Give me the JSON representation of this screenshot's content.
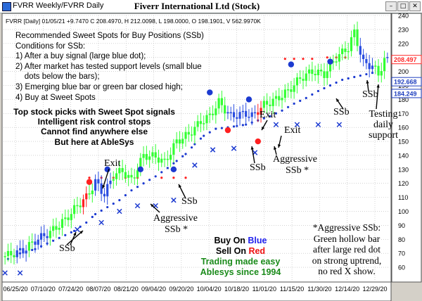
{
  "window": {
    "title": "FVRR Weekly/FVRR Daily",
    "buttons": {
      "minimize": "–",
      "maximize": "□",
      "close": "✕"
    }
  },
  "header": {
    "chart_title": "Fiverr International Ltd (Stock)",
    "ohlc_line": "FVRR [Daily] 01/05/21  +9.7470 C 208.4970, H 212.0098, L 198.0000, O 198.1901, V 562.9970K"
  },
  "info_box": {
    "title": "Recommended Sweet Spots for Buy Positions (SSb)",
    "lines": [
      "Conditions for SSb:",
      "1) After a buy signal (large blue dot);",
      "2) After market has tested support levels (small blue",
      "    dots below the bars);",
      "3) Emerging blue bar or green bar closed high;",
      "4) Buy at Sweet Spots"
    ]
  },
  "promo": {
    "lines": [
      "Top stock picks with Sweet Spot signals",
      "Intelligent risk control stops",
      "Cannot find anywhere else",
      "But here at AbleSys"
    ]
  },
  "tagline": {
    "buy_prefix": "Buy On ",
    "buy_word": "Blue",
    "sell_prefix": "Sell On ",
    "sell_word": "Red",
    "line3": "Trading made easy",
    "line4": "Ablesys since 1994"
  },
  "note": {
    "lines": [
      "*Aggressive SSb:",
      "Green hollow bar",
      "after large red dot",
      "on strong uptrend,",
      "no red X show."
    ]
  },
  "annotations": {
    "ssb": "SSb",
    "exit": "Exit",
    "aggressive": "Aggressive",
    "ssb_star": "SSb *",
    "testing": "Testing",
    "daily": "daily",
    "support": "support"
  },
  "price_labels": [
    {
      "value": "208.497",
      "color": "#ff2a2a"
    },
    {
      "value": "192.668",
      "color": "#1f3fbf"
    },
    {
      "value": "184.249",
      "color": "#1f3fbf"
    }
  ],
  "colors": {
    "background": "#ffffff",
    "up_bar": "#33ff33",
    "down_bar": "#ff2020",
    "blue_bar": "#2a4de0",
    "support_dot": "#1c3ad0",
    "resistance_dot": "#ff2020",
    "x_mark": "#1c3ad0",
    "tagline_green": "#1a8a1a",
    "tagline_blue": "#2222ee",
    "tagline_red": "#ee1111",
    "grid": "#b8b8b8"
  },
  "chart_data": {
    "type": "candlestick",
    "y_axis": {
      "min": 50,
      "max": 240,
      "step": 10,
      "position": "right",
      "ticks": [
        "60",
        "70",
        "80",
        "90",
        "100",
        "110",
        "120",
        "130",
        "140",
        "150",
        "160",
        "170",
        "180",
        "190",
        "200",
        "210",
        "220",
        "230",
        "240"
      ]
    },
    "x_tick_labels": [
      "06/25/20",
      "07/10/20",
      "07/24/20",
      "08/07/20",
      "08/21/20",
      "09/04/20",
      "09/20/20",
      "10/04/20",
      "10/18/20",
      "11/01/20",
      "11/15/20",
      "11/30/20",
      "12/14/20",
      "12/29/20"
    ],
    "grid": true,
    "close_path": [
      [
        0,
        68
      ],
      [
        6,
        72
      ],
      [
        10,
        79
      ],
      [
        15,
        85
      ],
      [
        20,
        94
      ],
      [
        24,
        104
      ],
      [
        27,
        110
      ],
      [
        30,
        121
      ],
      [
        33,
        112
      ],
      [
        36,
        126
      ],
      [
        39,
        129
      ],
      [
        42,
        122
      ],
      [
        46,
        140
      ],
      [
        50,
        139
      ],
      [
        53,
        135
      ],
      [
        57,
        150
      ],
      [
        61,
        155
      ],
      [
        65,
        164
      ],
      [
        68,
        168
      ],
      [
        71,
        178
      ],
      [
        75,
        168
      ],
      [
        80,
        170
      ],
      [
        82,
        168
      ],
      [
        86,
        176
      ],
      [
        90,
        180
      ],
      [
        94,
        186
      ],
      [
        98,
        195
      ],
      [
        102,
        200
      ],
      [
        106,
        198
      ],
      [
        110,
        210
      ],
      [
        114,
        217
      ],
      [
        116,
        228
      ],
      [
        119,
        206
      ],
      [
        122,
        204
      ],
      [
        124,
        198
      ],
      [
        126,
        208
      ]
    ],
    "up_bars": [
      0,
      1,
      2,
      3,
      8,
      9,
      15,
      16,
      17,
      18,
      19,
      20,
      21,
      22,
      23,
      24,
      25,
      26,
      27,
      28,
      29,
      36,
      37,
      38,
      39,
      40,
      41,
      42,
      43,
      44,
      45,
      46,
      47,
      48,
      49,
      50,
      51,
      52,
      53,
      54,
      55,
      56,
      57,
      58,
      59,
      60,
      61,
      62,
      63,
      64,
      65,
      66,
      67,
      68,
      69,
      70,
      71,
      72,
      73,
      86,
      87,
      88,
      89,
      90,
      91,
      92,
      93,
      94,
      95,
      96,
      97,
      98,
      99,
      100,
      101,
      102,
      103,
      104,
      105,
      106,
      107,
      108,
      109,
      110,
      111,
      112,
      113,
      114,
      115,
      116,
      117,
      123,
      124,
      125,
      126
    ],
    "down_bars": [
      26,
      27,
      84,
      85
    ],
    "big_blue_dots": [
      {
        "x": 34,
        "y": 130
      },
      {
        "x": 45,
        "y": 130
      },
      {
        "x": 56,
        "y": 130
      },
      {
        "x": 68,
        "y": 185
      },
      {
        "x": 81,
        "y": 180
      },
      {
        "x": 95,
        "y": 205
      },
      {
        "x": 108,
        "y": 207
      }
    ],
    "big_red_dots": [
      {
        "x": 28,
        "y": 121
      },
      {
        "x": 74,
        "y": 158
      },
      {
        "x": 84,
        "y": 150
      }
    ],
    "support_dots": [
      [
        1,
        66
      ],
      [
        5,
        70
      ],
      [
        10,
        73
      ],
      [
        14,
        77
      ],
      [
        18,
        81
      ],
      [
        23,
        86
      ],
      [
        27,
        92
      ],
      [
        30,
        98
      ],
      [
        34,
        103
      ],
      [
        38,
        108
      ],
      [
        42,
        115
      ],
      [
        46,
        120
      ],
      [
        50,
        125
      ],
      [
        54,
        131
      ],
      [
        57,
        136
      ],
      [
        60,
        141
      ],
      [
        63,
        148
      ],
      [
        66,
        154
      ],
      [
        70,
        159
      ],
      [
        74,
        160
      ],
      [
        77,
        161
      ],
      [
        80,
        162
      ],
      [
        84,
        165
      ],
      [
        88,
        168
      ],
      [
        92,
        172
      ],
      [
        96,
        177
      ],
      [
        100,
        181
      ],
      [
        104,
        186
      ],
      [
        108,
        190
      ],
      [
        112,
        194
      ],
      [
        116,
        196
      ],
      [
        120,
        198
      ],
      [
        124,
        200
      ]
    ],
    "resistance_dots": [
      [
        28,
        124
      ],
      [
        32,
        124
      ],
      [
        36,
        124
      ],
      [
        40,
        124
      ],
      [
        44,
        124
      ],
      [
        52,
        124
      ],
      [
        56,
        124
      ],
      [
        60,
        124
      ],
      [
        93,
        209
      ],
      [
        96,
        209
      ],
      [
        99,
        209
      ],
      [
        102,
        209
      ],
      [
        107,
        210
      ],
      [
        110,
        210
      ],
      [
        113,
        210
      ]
    ],
    "x_marks": [
      [
        0,
        56
      ],
      [
        5,
        56
      ],
      [
        24,
        87
      ],
      [
        32,
        92
      ],
      [
        38,
        100
      ],
      [
        44,
        104
      ],
      [
        50,
        104
      ],
      [
        56,
        108
      ],
      [
        63,
        133
      ],
      [
        69,
        144
      ],
      [
        76,
        145
      ],
      [
        83,
        142
      ],
      [
        90,
        162
      ],
      [
        97,
        162
      ],
      [
        104,
        162
      ],
      [
        111,
        162
      ]
    ]
  }
}
